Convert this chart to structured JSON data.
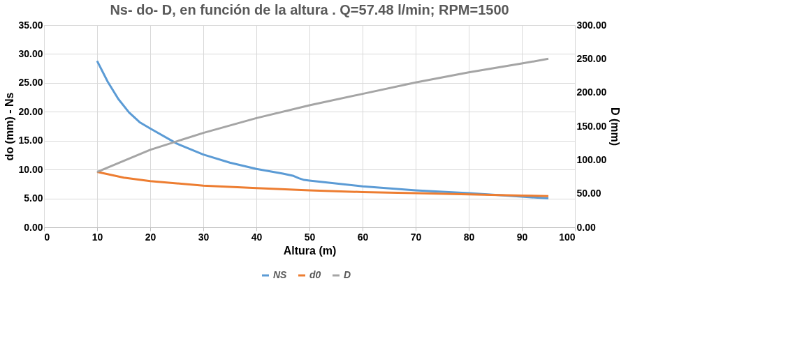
{
  "chart_data": {
    "type": "line",
    "title": "Ns- do- D, en función de la altura . Q=57.48 l/min; RPM=1500",
    "xlabel": "Altura (m)",
    "ylabel": "do (mm) - Ns",
    "y2label": "D (mm)",
    "xlim": [
      0,
      100
    ],
    "xticks": [
      0,
      10,
      20,
      30,
      40,
      50,
      60,
      70,
      80,
      90,
      100
    ],
    "ylim": [
      0,
      35
    ],
    "yticks": [
      {
        "value": 0,
        "label": "0.00"
      },
      {
        "value": 5,
        "label": "5.00"
      },
      {
        "value": 10,
        "label": "10.00"
      },
      {
        "value": 15,
        "label": "15.00"
      },
      {
        "value": 20,
        "label": "20.00"
      },
      {
        "value": 25,
        "label": "25.00"
      },
      {
        "value": 30,
        "label": "30.00"
      },
      {
        "value": 35,
        "label": "35.00"
      }
    ],
    "y2lim": [
      0,
      300
    ],
    "y2ticks": [
      {
        "value": 0,
        "label": "0.00"
      },
      {
        "value": 50,
        "label": "50.00"
      },
      {
        "value": 100,
        "label": "100.00"
      },
      {
        "value": 150,
        "label": "150.00"
      },
      {
        "value": 200,
        "label": "200.00"
      },
      {
        "value": 250,
        "label": "250.00"
      },
      {
        "value": 300,
        "label": "300.00"
      }
    ],
    "grid": true,
    "legend": "bottom",
    "marker": "none",
    "series": [
      {
        "name": "NS",
        "color": "#5b9bd5",
        "x": [
          10,
          12,
          14,
          16,
          18,
          20,
          25,
          30,
          35,
          40,
          45,
          47,
          48,
          49,
          50,
          60,
          70,
          80,
          90,
          95
        ],
        "values": [
          28.8,
          25.2,
          22.2,
          19.9,
          18.2,
          17.1,
          14.5,
          12.6,
          11.2,
          10.1,
          9.3,
          8.9,
          8.5,
          8.2,
          8.1,
          7.1,
          6.4,
          5.9,
          5.3,
          5.0
        ]
      },
      {
        "name": "d0",
        "color": "#ed7d31",
        "x": [
          10,
          15,
          20,
          30,
          40,
          50,
          60,
          70,
          80,
          90,
          95
        ],
        "values": [
          9.6,
          8.6,
          8.0,
          7.2,
          6.8,
          6.4,
          6.1,
          5.9,
          5.7,
          5.5,
          5.4
        ]
      },
      {
        "name": "D",
        "color": "#a5a5a5",
        "axis": "y2",
        "x": [
          10,
          20,
          30,
          40,
          50,
          60,
          70,
          80,
          90,
          95
        ],
        "values": [
          82,
          115,
          140,
          162,
          181,
          198,
          215,
          230,
          243,
          250
        ]
      }
    ]
  }
}
